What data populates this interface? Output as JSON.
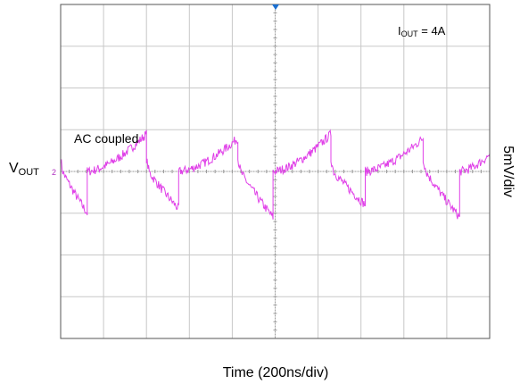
{
  "chart_data": {
    "type": "line",
    "title": "",
    "xlabel": "Time (200ns/div)",
    "ylabel": "5mV/div",
    "grid": true,
    "x_divisions": 10,
    "y_divisions": 8,
    "xlim": [
      0,
      10
    ],
    "ylim": [
      -4,
      4
    ],
    "trace_color": "#e040e8",
    "grid_color": "#c8c8c8",
    "trigger_marker_color": "#1a6fd1",
    "annotations": {
      "condition_main": "I",
      "condition_sub": "OUT",
      "condition_tail": " = 4A",
      "coupling": "AC coupled"
    },
    "channel": {
      "label_main": "V",
      "label_sub": "OUT",
      "number": "2"
    },
    "series": [
      {
        "ripple_period_div": 2.17,
        "segments": [
          {
            "t_start": 0.0,
            "t_end": 0.62,
            "shape": "fall",
            "y_peak": 0.3,
            "y_trough": -1.0
          },
          {
            "t_start": 0.62,
            "t_end": 2.0,
            "shape": "rise",
            "y_start": 0.0,
            "y_peak": 0.9
          },
          {
            "t_start": 2.0,
            "t_end": 2.75,
            "shape": "fall",
            "y_peak": 0.3,
            "y_trough": -0.9
          },
          {
            "t_start": 2.75,
            "t_end": 4.13,
            "shape": "rise",
            "y_start": 0.0,
            "y_peak": 0.8
          },
          {
            "t_start": 4.13,
            "t_end": 4.95,
            "shape": "fall",
            "y_peak": 0.3,
            "y_trough": -1.1
          },
          {
            "t_start": 4.95,
            "t_end": 6.3,
            "shape": "rise",
            "y_start": 0.0,
            "y_peak": 0.9
          },
          {
            "t_start": 6.3,
            "t_end": 7.1,
            "shape": "fall",
            "y_peak": 0.3,
            "y_trough": -0.8
          },
          {
            "t_start": 7.1,
            "t_end": 8.45,
            "shape": "rise",
            "y_start": 0.0,
            "y_peak": 0.8
          },
          {
            "t_start": 8.45,
            "t_end": 9.3,
            "shape": "fall",
            "y_peak": 0.3,
            "y_trough": -1.1
          },
          {
            "t_start": 9.3,
            "t_end": 10.0,
            "shape": "rise",
            "y_start": 0.0,
            "y_peak": 0.4
          }
        ]
      }
    ]
  }
}
